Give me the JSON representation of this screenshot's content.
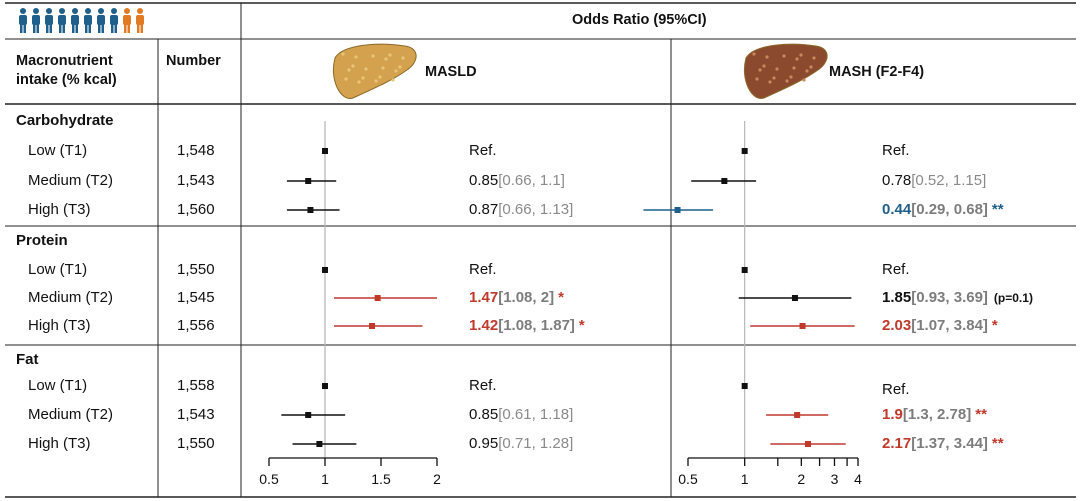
{
  "colors": {
    "black": "#111111",
    "red": "#c0392b",
    "blue": "#1f5f8b",
    "gray_ci": "#8a8a8a",
    "ref_line": "#b5b5b5",
    "person_blue": "#1f5f8b",
    "person_orange": "#e07b24",
    "liver_healthy": "#d4a24e",
    "liver_mash": "#8b4a2e"
  },
  "icons": {
    "people": "person-icons-row",
    "liver_masld": "healthy-liver-icon",
    "liver_mash": "fibrotic-liver-icon"
  },
  "header": {
    "odds_ratio_title": "Odds Ratio (95%CI)",
    "col_intake": "Macronutrient intake (% kcal)",
    "col_number": "Number",
    "masld_label": "MASLD",
    "mash_label": "MASH (F2-F4)"
  },
  "groups": [
    {
      "name": "Carbohydrate"
    },
    {
      "name": "Protein"
    },
    {
      "name": "Fat"
    }
  ],
  "rows": [
    {
      "label": "Low (T1)",
      "number": "1,548",
      "masld": {
        "bold": "",
        "main": "Ref.",
        "ci": "",
        "star": "",
        "color": "black"
      },
      "mash": {
        "bold": "",
        "main": "Ref.",
        "ci": "",
        "star": "",
        "note": "",
        "color": "black"
      }
    },
    {
      "label": "Medium (T2)",
      "number": "1,543",
      "masld": {
        "bold": "",
        "main": "0.85",
        "ci": "[0.66, 1.1]",
        "star": "",
        "color": "black"
      },
      "mash": {
        "bold": "",
        "main": "0.78",
        "ci": "[0.52, 1.15]",
        "star": "",
        "note": "",
        "color": "black"
      }
    },
    {
      "label": "High (T3)",
      "number": "1,560",
      "masld": {
        "bold": "",
        "main": "0.87",
        "ci": "[0.66, 1.13]",
        "star": "",
        "color": "black"
      },
      "mash": {
        "bold": "0.44",
        "main": "",
        "ci": "[0.29, 0.68]",
        "star": "**",
        "note": "",
        "color": "blue"
      }
    },
    {
      "label": "Low (T1)",
      "number": "1,550",
      "masld": {
        "bold": "",
        "main": "Ref.",
        "ci": "",
        "star": "",
        "color": "black"
      },
      "mash": {
        "bold": "",
        "main": "Ref.",
        "ci": "",
        "star": "",
        "note": "",
        "color": "black"
      }
    },
    {
      "label": "Medium (T2)",
      "number": "1,545",
      "masld": {
        "bold": "1.47",
        "main": "",
        "ci": "[1.08, 2]",
        "star": "*",
        "color": "red"
      },
      "mash": {
        "bold": "1.85",
        "main": "",
        "ci": "[0.93, 3.69]",
        "star": "",
        "note": "(p=0.1)",
        "color": "black"
      }
    },
    {
      "label": "High (T3)",
      "number": "1,556",
      "masld": {
        "bold": "1.42",
        "main": "",
        "ci": "[1.08, 1.87]",
        "star": "*",
        "color": "red"
      },
      "mash": {
        "bold": "2.03",
        "main": "",
        "ci": "[1.07, 3.84]",
        "star": "*",
        "note": "",
        "color": "red"
      }
    },
    {
      "label": "Low (T1)",
      "number": "1,558",
      "masld": {
        "bold": "",
        "main": "Ref.",
        "ci": "",
        "star": "",
        "color": "black"
      },
      "mash": {
        "bold": "",
        "main": "Ref.",
        "ci": "",
        "star": "",
        "note": "",
        "color": "black"
      }
    },
    {
      "label": "Medium (T2)",
      "number": "1,543",
      "masld": {
        "bold": "",
        "main": "0.85",
        "ci": "[0.61, 1.18]",
        "star": "",
        "color": "black"
      },
      "mash": {
        "bold": "1.9",
        "main": "",
        "ci": "[1.3, 2.78]",
        "star": "**",
        "note": "",
        "color": "red"
      }
    },
    {
      "label": "High (T3)",
      "number": "1,550",
      "masld": {
        "bold": "",
        "main": "0.95",
        "ci": "[0.71, 1.28]",
        "star": "",
        "color": "black"
      },
      "mash": {
        "bold": "2.17",
        "main": "",
        "ci": "[1.37, 3.44]",
        "star": "**",
        "note": "",
        "color": "red"
      }
    }
  ],
  "chart_data": [
    {
      "type": "scatter",
      "title": "MASLD",
      "xlabel": "Odds Ratio (95%CI)",
      "x_scale": "linear",
      "xlim": [
        0.5,
        2
      ],
      "x_ticks": [
        "0.5",
        "1",
        "1.5",
        "2"
      ],
      "reference_line": 1,
      "points": [
        {
          "group": "Carbohydrate",
          "level": "Low (T1)",
          "or": 1,
          "lo": 1,
          "hi": 1,
          "color": "black"
        },
        {
          "group": "Carbohydrate",
          "level": "Medium (T2)",
          "or": 0.85,
          "lo": 0.66,
          "hi": 1.1,
          "color": "black"
        },
        {
          "group": "Carbohydrate",
          "level": "High (T3)",
          "or": 0.87,
          "lo": 0.66,
          "hi": 1.13,
          "color": "black"
        },
        {
          "group": "Protein",
          "level": "Low (T1)",
          "or": 1,
          "lo": 1,
          "hi": 1,
          "color": "black"
        },
        {
          "group": "Protein",
          "level": "Medium (T2)",
          "or": 1.47,
          "lo": 1.08,
          "hi": 2,
          "color": "red"
        },
        {
          "group": "Protein",
          "level": "High (T3)",
          "or": 1.42,
          "lo": 1.08,
          "hi": 1.87,
          "color": "red"
        },
        {
          "group": "Fat",
          "level": "Low (T1)",
          "or": 1,
          "lo": 1,
          "hi": 1,
          "color": "black"
        },
        {
          "group": "Fat",
          "level": "Medium (T2)",
          "or": 0.85,
          "lo": 0.61,
          "hi": 1.18,
          "color": "black"
        },
        {
          "group": "Fat",
          "level": "High (T3)",
          "or": 0.95,
          "lo": 0.71,
          "hi": 1.28,
          "color": "black"
        }
      ]
    },
    {
      "type": "scatter",
      "title": "MASH (F2-F4)",
      "xlabel": "Odds Ratio (95%CI)",
      "x_scale": "log",
      "xlim": [
        0.5,
        4
      ],
      "x_ticks": [
        "0.5",
        "1",
        "2",
        "3",
        "4"
      ],
      "minor_ticks": [
        1.5,
        2.5,
        3.5
      ],
      "reference_line": 1,
      "points": [
        {
          "group": "Carbohydrate",
          "level": "Low (T1)",
          "or": 1,
          "lo": 1,
          "hi": 1,
          "color": "black"
        },
        {
          "group": "Carbohydrate",
          "level": "Medium (T2)",
          "or": 0.78,
          "lo": 0.52,
          "hi": 1.15,
          "color": "black"
        },
        {
          "group": "Carbohydrate",
          "level": "High (T3)",
          "or": 0.44,
          "lo": 0.29,
          "hi": 0.68,
          "color": "blue"
        },
        {
          "group": "Protein",
          "level": "Low (T1)",
          "or": 1,
          "lo": 1,
          "hi": 1,
          "color": "black"
        },
        {
          "group": "Protein",
          "level": "Medium (T2)",
          "or": 1.85,
          "lo": 0.93,
          "hi": 3.69,
          "color": "black"
        },
        {
          "group": "Protein",
          "level": "High (T3)",
          "or": 2.03,
          "lo": 1.07,
          "hi": 3.84,
          "color": "red"
        },
        {
          "group": "Fat",
          "level": "Low (T1)",
          "or": 1,
          "lo": 1,
          "hi": 1,
          "color": "black"
        },
        {
          "group": "Fat",
          "level": "Medium (T2)",
          "or": 1.9,
          "lo": 1.3,
          "hi": 2.78,
          "color": "red"
        },
        {
          "group": "Fat",
          "level": "High (T3)",
          "or": 2.17,
          "lo": 1.37,
          "hi": 3.44,
          "color": "red"
        }
      ]
    }
  ]
}
